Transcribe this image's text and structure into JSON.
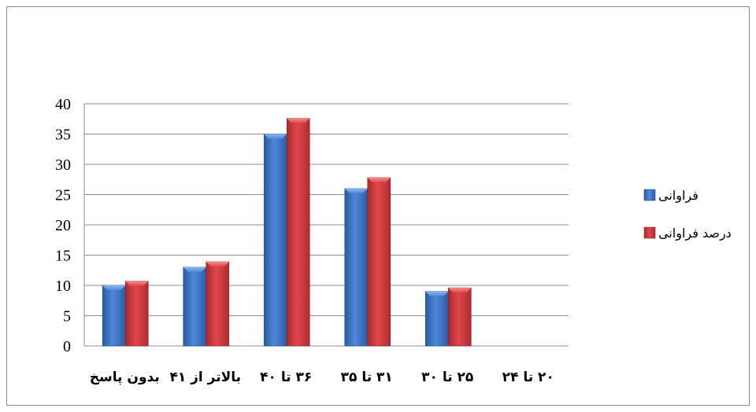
{
  "chart_data": {
    "type": "bar",
    "categories": [
      "۲۰ تا ۲۴",
      "۲۵ تا ۳۰",
      "۳۱ تا ۳۵",
      "۳۶ تا ۴۰",
      "بالاتر از ۴۱",
      "بدون پاسخ"
    ],
    "series": [
      {
        "name": "فراوانی",
        "values": [
          0,
          9,
          26,
          35,
          13,
          10
        ],
        "color": "#3f73c0"
      },
      {
        "name": "درصد فراوانی",
        "values": [
          0,
          9.6,
          27.8,
          37.6,
          13.9,
          10.7
        ],
        "color": "#c8373a"
      }
    ],
    "y_ticks": [
      "0",
      "5",
      "10",
      "15",
      "20",
      "25",
      "30",
      "35",
      "40"
    ],
    "ylim": [
      0,
      40
    ],
    "grid": true,
    "legend_position": "right",
    "title": "",
    "xlabel": "",
    "ylabel": ""
  }
}
